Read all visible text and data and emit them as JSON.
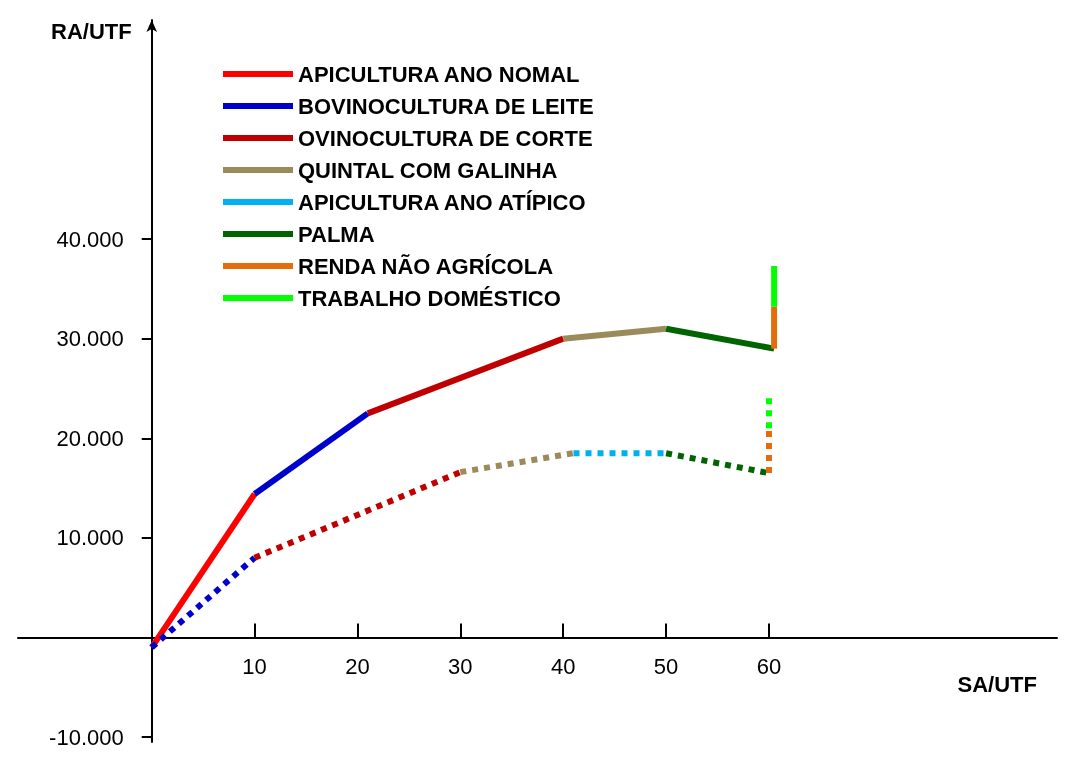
{
  "chart_data": {
    "type": "line",
    "xlabel": "SA/UTF",
    "ylabel": "RA/UTF",
    "xlim": [
      -13,
      88
    ],
    "ylim": [
      -10500,
      62000
    ],
    "xticks": [
      10,
      20,
      30,
      40,
      50,
      60
    ],
    "yticks": [
      {
        "value": -10000,
        "label": "-10.000"
      },
      {
        "value": 10000,
        "label": "10.000"
      },
      {
        "value": 20000,
        "label": "20.000"
      },
      {
        "value": 30000,
        "label": "30.000"
      },
      {
        "value": 40000,
        "label": "40.000"
      }
    ],
    "grid": false,
    "legend": "top left",
    "marker": "none",
    "series": [
      {
        "name": "APICULTURA ANO NOMAL",
        "color": "#ff0000",
        "line_style": "solid",
        "x": [
          0,
          10
        ],
        "values": [
          -1000,
          14400
        ]
      },
      {
        "name": "BOVINOCULTURA DE LEITE",
        "color": "#0000cc",
        "line_style": "solid",
        "x": [
          10,
          21
        ],
        "values": [
          14400,
          22500
        ]
      },
      {
        "name": "OVINOCULTURA DE CORTE",
        "color": "#c00000",
        "line_style": "solid",
        "x": [
          21,
          40
        ],
        "values": [
          22500,
          30000
        ]
      },
      {
        "name": "QUINTAL COM GALINHA",
        "color": "#9c8b5a",
        "line_style": "solid",
        "x": [
          40,
          50
        ],
        "values": [
          30000,
          31000
        ]
      },
      {
        "name": "APICULTURA ANO ATÍPICO",
        "color": "#00b0f0",
        "line_style": "dotted",
        "x": [
          41,
          50
        ],
        "values": [
          18500,
          18500
        ]
      },
      {
        "name": "PALMA",
        "color": "#006400",
        "line_style": "solid",
        "x": [
          50,
          60.5
        ],
        "values": [
          31000,
          29000
        ]
      },
      {
        "name": "RENDA NÃO AGRÍCOLA",
        "color": "#e46c0a",
        "line_style": "solid",
        "x": [
          60.5,
          60.5
        ],
        "values": [
          29000,
          33200
        ]
      },
      {
        "name": "TRABALHO DOMÉSTICO",
        "color": "#00ff00",
        "line_style": "solid",
        "x": [
          60.5,
          60.5
        ],
        "values": [
          33200,
          37300
        ]
      },
      {
        "color": "#0000cc",
        "line_style": "dotted",
        "x": [
          0,
          10
        ],
        "values": [
          -1000,
          8000
        ]
      },
      {
        "color": "#c00000",
        "line_style": "dotted",
        "x": [
          10,
          30
        ],
        "values": [
          8000,
          16600
        ]
      },
      {
        "color": "#9c8b5a",
        "line_style": "dotted",
        "x": [
          30,
          41
        ],
        "values": [
          16600,
          18500
        ]
      },
      {
        "color": "#006400",
        "line_style": "dotted",
        "x": [
          50,
          60
        ],
        "values": [
          18500,
          16500
        ]
      },
      {
        "color": "#e46c0a",
        "line_style": "dotted",
        "x": [
          60,
          60
        ],
        "values": [
          16500,
          21000
        ]
      },
      {
        "color": "#00ff00",
        "line_style": "dotted",
        "x": [
          60,
          60
        ],
        "values": [
          21000,
          24300
        ]
      }
    ]
  }
}
